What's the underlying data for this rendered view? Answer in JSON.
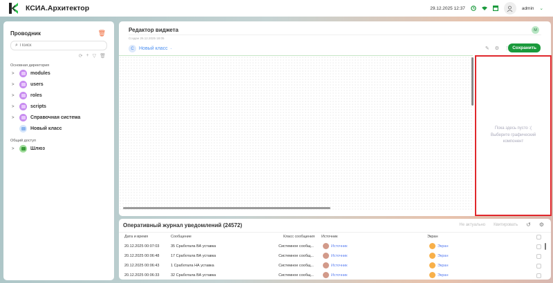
{
  "header": {
    "app_title": "КСИА.Архитектор",
    "datetime": "29.12.2025 12:37",
    "user": "admin",
    "icons": [
      "clock-icon",
      "wifi-icon",
      "layout-icon"
    ],
    "accent": "#1a9a3c"
  },
  "sidebar": {
    "title": "Проводник",
    "search_placeholder": "Поиск",
    "section_main": "Основная директория",
    "items": [
      {
        "label": "modules"
      },
      {
        "label": "users"
      },
      {
        "label": "roles"
      },
      {
        "label": "scripts"
      },
      {
        "label": "Справочная система"
      },
      {
        "label": "Новый класс"
      }
    ],
    "section_shared": "Общий доступ",
    "shared_items": [
      {
        "label": "Шлюз"
      }
    ]
  },
  "editor": {
    "title": "Редактор виджета",
    "created": "Создан 26.12.2025 18:05",
    "avatar_letter": "M",
    "class_letter": "С",
    "class_name": "Новый класс",
    "save_label": "Сохранить",
    "empty_line1": "Пока здесь пусто :(",
    "empty_line2": "Выберите графический компонент"
  },
  "journal": {
    "title": "Оперативный журнал уведомлений (24572)",
    "btn_not_actual": "Не актуально",
    "btn_ack": "Квитировать",
    "columns": [
      "Дата и время",
      "Сообщение",
      "Класс сообщения",
      "Источник",
      "Экран"
    ],
    "rows": [
      {
        "time": "20.12.2025 00:07:03",
        "msg": "35 Сработала ВА уставка",
        "cls": "Системное сообщ...",
        "src": "Источник",
        "screen": "Экран"
      },
      {
        "time": "20.12.2025 00:06:48",
        "msg": "17 Сработала ВА уставка",
        "cls": "Системное сообщ...",
        "src": "Источник",
        "screen": "Экран"
      },
      {
        "time": "20.12.2025 00:06:43",
        "msg": "1 Сработала НА уставка",
        "cls": "Системное сообщ...",
        "src": "Источник",
        "screen": "Экран"
      },
      {
        "time": "20.12.2025 00:06:33",
        "msg": "32 Сработала ВА уставка",
        "cls": "Системное сообщ...",
        "src": "Источник",
        "screen": "Экран"
      }
    ]
  }
}
